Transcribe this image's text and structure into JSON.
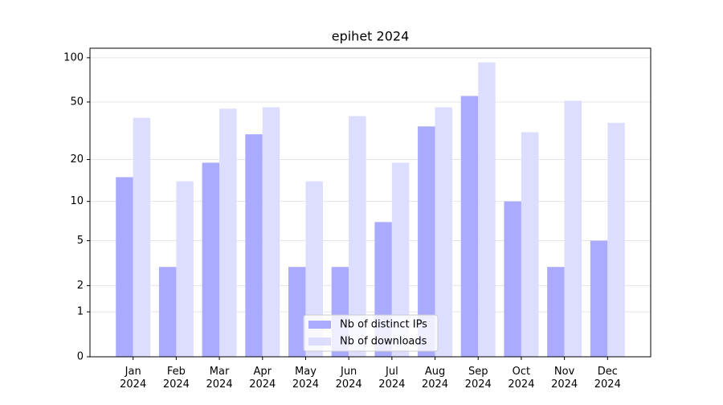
{
  "chart_data": {
    "type": "bar",
    "title": "epihet 2024",
    "categories": [
      "Jan 2024",
      "Feb 2024",
      "Mar 2024",
      "Apr 2024",
      "May 2024",
      "Jun 2024",
      "Jul 2024",
      "Aug 2024",
      "Sep 2024",
      "Oct 2024",
      "Nov 2024",
      "Dec 2024"
    ],
    "series": [
      {
        "name": "Nb of distinct IPs",
        "color": "#aaaaff",
        "values": [
          15,
          3,
          19,
          30,
          3,
          3,
          7,
          34,
          55,
          10,
          3,
          5
        ]
      },
      {
        "name": "Nb of downloads",
        "color": "#ddddff",
        "values": [
          39,
          14,
          45,
          46,
          14,
          40,
          19,
          46,
          93,
          31,
          51,
          36
        ]
      }
    ],
    "y_scale": "log1p",
    "ylim": [
      0,
      116
    ],
    "yticks": [
      0,
      1,
      2,
      5,
      10,
      20,
      50,
      100
    ],
    "grid": true,
    "legend": "lower center"
  }
}
